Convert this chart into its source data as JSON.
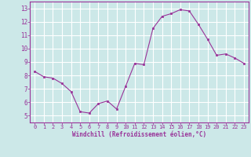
{
  "x": [
    0,
    1,
    2,
    3,
    4,
    5,
    6,
    7,
    8,
    9,
    10,
    11,
    12,
    13,
    14,
    15,
    16,
    17,
    18,
    19,
    20,
    21,
    22,
    23
  ],
  "y": [
    8.3,
    7.9,
    7.8,
    7.4,
    6.8,
    5.3,
    5.2,
    5.9,
    6.1,
    5.5,
    7.2,
    8.9,
    8.8,
    11.5,
    12.4,
    12.6,
    12.9,
    12.8,
    11.8,
    10.7,
    9.5,
    9.6,
    9.3,
    8.9
  ],
  "xlim": [
    -0.5,
    23.5
  ],
  "ylim": [
    4.5,
    13.5
  ],
  "yticks": [
    5,
    6,
    7,
    8,
    9,
    10,
    11,
    12,
    13
  ],
  "xticks": [
    0,
    1,
    2,
    3,
    4,
    5,
    6,
    7,
    8,
    9,
    10,
    11,
    12,
    13,
    14,
    15,
    16,
    17,
    18,
    19,
    20,
    21,
    22,
    23
  ],
  "xlabel": "Windchill (Refroidissement éolien,°C)",
  "line_color": "#993399",
  "marker": "s",
  "marker_size": 2,
  "bg_color": "#cce8e8",
  "grid_color": "#ffffff",
  "tick_label_color": "#993399",
  "xlabel_color": "#993399",
  "spine_color": "#993399"
}
